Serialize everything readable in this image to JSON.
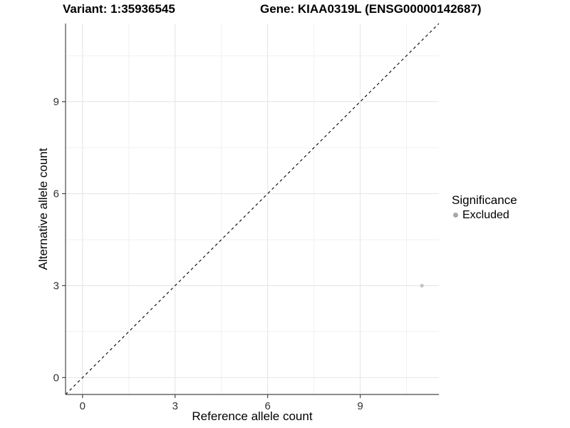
{
  "chart_data": {
    "type": "scatter",
    "title_left": "Variant: 1:35936545",
    "title_right": "Gene: KIAA0319L (ENSG00000142687)",
    "xlabel": "Reference allele count",
    "ylabel": "Alternative allele count",
    "xlim": [
      -0.55,
      11.55
    ],
    "ylim": [
      -0.55,
      11.55
    ],
    "x_ticks": [
      0,
      3,
      6,
      9
    ],
    "y_ticks": [
      0,
      3,
      6,
      9
    ],
    "x_minor": [
      1.5,
      4.5,
      7.5,
      10.5
    ],
    "y_minor": [
      1.5,
      4.5,
      7.5,
      10.5
    ],
    "grid": true,
    "series": [
      {
        "name": "Excluded",
        "color": "#c2c2c2",
        "points": [
          {
            "x": 11,
            "y": 3
          }
        ]
      }
    ],
    "reference_line": {
      "kind": "identity",
      "equation": "y = x",
      "style": "dashed",
      "color": "#000000"
    },
    "legend": {
      "title": "Significance",
      "position": "right",
      "items": [
        {
          "label": "Excluded",
          "color": "#a8a8a8"
        }
      ]
    },
    "style": {
      "grid_major": "#e4e4e4",
      "grid_minor": "#f1f1f1",
      "axis_line": "#474747",
      "tick_text": "#303030",
      "point_radius": 2.5
    }
  }
}
